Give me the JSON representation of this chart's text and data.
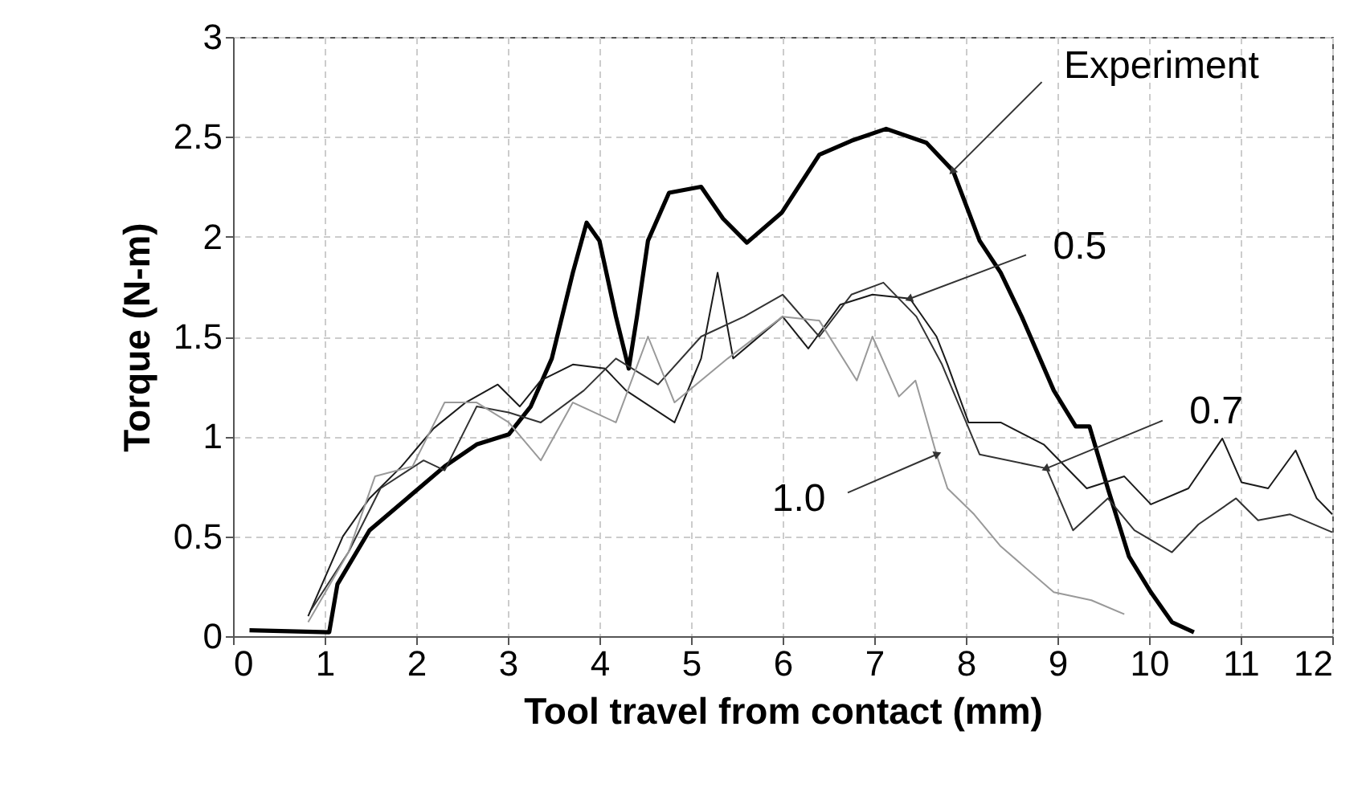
{
  "chart_data": {
    "type": "line",
    "xlabel": "Tool travel from contact (mm)",
    "ylabel": "Torque (N-m)",
    "xlim": [
      0,
      12
    ],
    "xticks": [
      0,
      1,
      2,
      3,
      4,
      5,
      6,
      7,
      8,
      9,
      10,
      11,
      12
    ],
    "ylim": [
      0,
      3
    ],
    "yticks": [
      0,
      0.5,
      1,
      1.5,
      2,
      2.5,
      3
    ],
    "grid": true,
    "marker": "none",
    "line_style": "solid",
    "series": [
      {
        "name": "Experiment",
        "color": "#000000",
        "x": [
          0.18,
          1.05,
          1.14,
          1.49,
          1.9,
          2.31,
          2.66,
          3.01,
          3.25,
          3.48,
          3.71,
          3.86,
          4.0,
          4.18,
          4.32,
          4.41,
          4.53,
          4.76,
          5.11,
          5.35,
          5.61,
          5.99,
          6.4,
          6.75,
          7.13,
          7.57,
          7.86,
          8.15,
          8.38,
          8.61,
          8.96,
          9.2,
          9.35,
          9.55,
          9.78,
          10.02,
          10.25,
          10.49
        ],
        "values": [
          0.03,
          0.02,
          0.26,
          0.53,
          0.69,
          0.85,
          0.96,
          1.01,
          1.15,
          1.39,
          1.82,
          2.07,
          1.98,
          1.6,
          1.34,
          1.6,
          1.98,
          2.22,
          2.25,
          2.09,
          1.97,
          2.12,
          2.41,
          2.48,
          2.54,
          2.47,
          2.33,
          1.98,
          1.82,
          1.6,
          1.23,
          1.05,
          1.05,
          0.74,
          0.4,
          0.22,
          0.07,
          0.02
        ]
      },
      {
        "name": "0.5",
        "color": "#1a1a1a",
        "x": [
          0.82,
          1.2,
          1.49,
          1.84,
          2.19,
          2.54,
          2.89,
          3.13,
          3.36,
          3.71,
          4.06,
          4.29,
          4.82,
          5.11,
          5.29,
          5.46,
          6.0,
          6.28,
          6.63,
          6.98,
          7.39,
          7.68,
          7.8,
          8.03,
          8.38,
          8.85,
          9.32,
          9.73,
          10.02,
          10.43,
          10.8,
          11.01,
          11.3,
          11.6,
          11.83,
          12.0
        ],
        "values": [
          0.1,
          0.5,
          0.69,
          0.85,
          1.04,
          1.17,
          1.26,
          1.15,
          1.28,
          1.36,
          1.34,
          1.23,
          1.07,
          1.39,
          1.82,
          1.39,
          1.6,
          1.44,
          1.66,
          1.71,
          1.69,
          1.5,
          1.36,
          1.07,
          1.07,
          0.96,
          0.74,
          0.8,
          0.66,
          0.74,
          0.99,
          0.77,
          0.74,
          0.93,
          0.69,
          0.61
        ]
      },
      {
        "name": "0.7",
        "color": "#333333",
        "x": [
          0.85,
          1.26,
          1.61,
          2.08,
          2.31,
          2.66,
          3.01,
          3.36,
          3.83,
          4.18,
          4.64,
          5.11,
          5.58,
          6.0,
          6.4,
          6.75,
          7.1,
          7.46,
          7.74,
          8.15,
          8.88,
          9.17,
          9.55,
          9.84,
          10.25,
          10.54,
          10.95,
          11.19,
          11.54,
          12.0
        ],
        "values": [
          0.13,
          0.42,
          0.74,
          0.88,
          0.83,
          1.15,
          1.12,
          1.07,
          1.23,
          1.39,
          1.26,
          1.5,
          1.6,
          1.71,
          1.5,
          1.71,
          1.77,
          1.6,
          1.36,
          0.91,
          0.84,
          0.53,
          0.69,
          0.53,
          0.42,
          0.56,
          0.69,
          0.58,
          0.61,
          0.52
        ]
      },
      {
        "name": "1.0",
        "color": "#999999",
        "x": [
          0.82,
          1.26,
          1.55,
          1.96,
          2.31,
          2.66,
          3.01,
          3.36,
          3.71,
          4.18,
          4.53,
          4.82,
          5.4,
          6.0,
          6.4,
          6.81,
          6.98,
          7.27,
          7.45,
          7.68,
          7.8,
          8.09,
          8.38,
          8.96,
          9.37,
          9.73
        ],
        "values": [
          0.07,
          0.42,
          0.8,
          0.85,
          1.17,
          1.17,
          1.07,
          0.88,
          1.17,
          1.07,
          1.5,
          1.17,
          1.39,
          1.6,
          1.58,
          1.28,
          1.5,
          1.2,
          1.28,
          0.91,
          0.74,
          0.61,
          0.45,
          0.22,
          0.18,
          0.11
        ]
      }
    ]
  }
}
